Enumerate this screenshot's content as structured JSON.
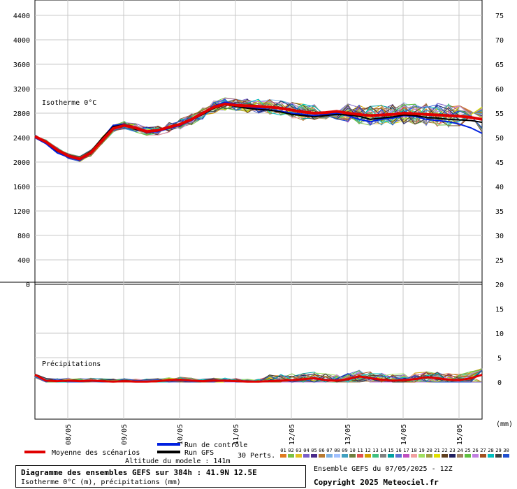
{
  "chart_data": {
    "type": "line",
    "isotherm_label": "Isotherme 0°C",
    "precip_label": "Précipitations",
    "y_left_ticks": [
      "4400",
      "4000",
      "3600",
      "3200",
      "2800",
      "2400",
      "2000",
      "1600",
      "1200",
      "800",
      "400",
      "0"
    ],
    "y_right_ticks": [
      "75",
      "70",
      "65",
      "60",
      "55",
      "50",
      "45",
      "40",
      "35",
      "30",
      "25",
      "20",
      "15",
      "10",
      "5",
      "0"
    ],
    "y_right_unit": "(mm)",
    "x_tick_labels": [
      "08/05",
      "09/05",
      "10/05",
      "11/05",
      "12/05",
      "13/05",
      "14/05",
      "15/05"
    ],
    "ylim_left": [
      0,
      4600
    ],
    "ylim_right": [
      0,
      75
    ],
    "grid": true,
    "mean_isotherm": [
      2420,
      2330,
      2200,
      2100,
      2050,
      2150,
      2350,
      2550,
      2600,
      2560,
      2500,
      2520,
      2570,
      2620,
      2700,
      2800,
      2900,
      2950,
      2930,
      2920,
      2910,
      2900,
      2880,
      2850,
      2820,
      2800,
      2810,
      2830,
      2800,
      2780,
      2760,
      2770,
      2780,
      2800,
      2790,
      2780,
      2770,
      2760,
      2750,
      2730,
      2700
    ],
    "control_isotherm": [
      2400,
      2300,
      2150,
      2080,
      2030,
      2150,
      2380,
      2600,
      2620,
      2560,
      2480,
      2500,
      2550,
      2600,
      2680,
      2800,
      2920,
      2980,
      2950,
      2900,
      2880,
      2850,
      2830,
      2800,
      2780,
      2760,
      2780,
      2800,
      2760,
      2700,
      2660,
      2700,
      2720,
      2760,
      2750,
      2700,
      2680,
      2660,
      2620,
      2560,
      2470
    ],
    "gfs_isotherm": [
      2420,
      2320,
      2180,
      2100,
      2060,
      2170,
      2390,
      2580,
      2610,
      2540,
      2490,
      2510,
      2560,
      2620,
      2690,
      2780,
      2880,
      2940,
      2910,
      2880,
      2860,
      2850,
      2820,
      2780,
      2760,
      2740,
      2760,
      2780,
      2770,
      2750,
      2700,
      2720,
      2740,
      2770,
      2760,
      2730,
      2720,
      2700,
      2690,
      2680,
      2650
    ],
    "mean_precip": [
      1.5,
      0.3,
      0.2,
      0.3,
      0.2,
      0.3,
      0.2,
      0.1,
      0.2,
      0.1,
      0.1,
      0.2,
      0.4,
      0.5,
      0.3,
      0.2,
      0.3,
      0.3,
      0.2,
      0.1,
      0.1,
      0.2,
      0.3,
      0.4,
      0.6,
      0.8,
      0.4,
      0.3,
      0.6,
      1.2,
      0.8,
      0.5,
      0.3,
      0.4,
      0.6,
      1.0,
      0.8,
      0.5,
      0.4,
      0.8,
      1.5
    ],
    "legend": {
      "mean": "Moyenne des scénarios",
      "control": "Run de contrôle",
      "gfs": "Run GFS",
      "perts": "30 Perts."
    },
    "perturbation_ids": [
      "01",
      "02",
      "03",
      "04",
      "05",
      "06",
      "07",
      "08",
      "09",
      "10",
      "11",
      "12",
      "13",
      "14",
      "15",
      "16",
      "17",
      "18",
      "19",
      "20",
      "21",
      "22",
      "23",
      "24",
      "25",
      "26",
      "27",
      "28",
      "29",
      "30"
    ],
    "perturbation_colors": [
      "#e07a1f",
      "#7ac142",
      "#e2c020",
      "#7a60c8",
      "#4a2a8a",
      "#b87a30",
      "#7ab0e0",
      "#a0c0ff",
      "#40a0c0",
      "#708040",
      "#e05050",
      "#d0a000",
      "#40c080",
      "#808080",
      "#00a0a0",
      "#6070d0",
      "#c050c0",
      "#f0a0a0",
      "#a0e060",
      "#a0a040",
      "#e0e000",
      "#604020",
      "#202060",
      "#a08060",
      "#60c040",
      "#c080e0",
      "#a05020",
      "#00c0c0",
      "#404040",
      "#2050d0"
    ],
    "colors": {
      "mean": "#e00000",
      "control": "#0020e0",
      "gfs": "#000000"
    }
  },
  "altitude_label": "Altitude du modele : 141m",
  "footer": {
    "title": "Diagramme des ensembles GEFS sur 384h : 41.9N 12.5E",
    "subtitle": "Isotherme 0°C (m), précipitations (mm)",
    "ensemble": "Ensemble GEFS du 07/05/2025 - 12Z",
    "copyright": "Copyright 2025 Meteociel.fr"
  }
}
